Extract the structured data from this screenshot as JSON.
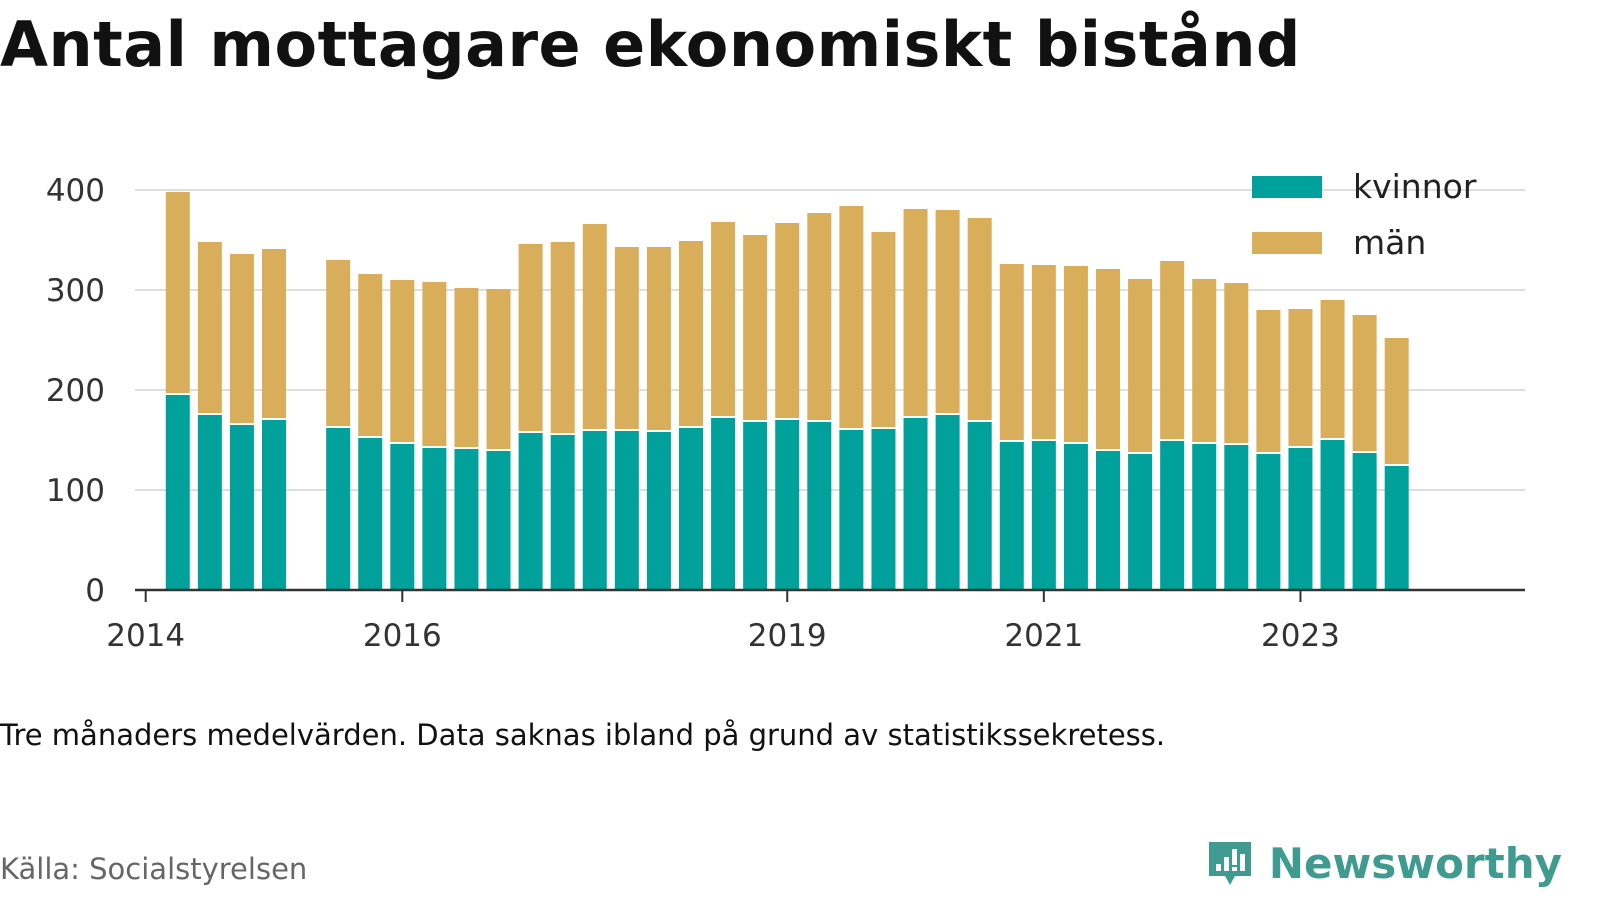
{
  "chart_data": {
    "type": "bar",
    "stacked": true,
    "title": "Antal mottagare ekonomiskt bistånd",
    "note": "Tre månaders medelvärden. Data saknas ibland på grund av statistikssekretess.",
    "source": "Källa: Socialstyrelsen",
    "xlabel": "",
    "ylabel": "",
    "ylim": [
      0,
      400
    ],
    "yticks": [
      0,
      100,
      200,
      300,
      400
    ],
    "xlim": [
      "2013-12",
      "2024-10"
    ],
    "xticks": [
      {
        "label": "2014",
        "value": "2014-01"
      },
      {
        "label": "2016",
        "value": "2016-01"
      },
      {
        "label": "2019",
        "value": "2019-01"
      },
      {
        "label": "2021",
        "value": "2021-01"
      },
      {
        "label": "2023",
        "value": "2023-01"
      }
    ],
    "grid": true,
    "legend": "top-right",
    "periods": [
      "2014-04",
      "2014-07",
      "2014-10",
      "2015-01",
      "2015-07",
      "2015-10",
      "2016-01",
      "2016-04",
      "2016-07",
      "2016-10",
      "2017-01",
      "2017-04",
      "2017-07",
      "2017-10",
      "2018-01",
      "2018-04",
      "2018-07",
      "2018-10",
      "2019-01",
      "2019-04",
      "2019-07",
      "2019-10",
      "2020-01",
      "2020-04",
      "2020-07",
      "2020-10",
      "2021-01",
      "2021-04",
      "2021-07",
      "2021-10",
      "2022-01",
      "2022-04",
      "2022-07",
      "2022-10",
      "2023-01",
      "2023-04",
      "2023-07",
      "2023-10"
    ],
    "series": [
      {
        "name": "kvinnor",
        "color": "#00a19a",
        "values": [
          195,
          175,
          165,
          170,
          162,
          152,
          146,
          142,
          141,
          139,
          157,
          155,
          159,
          159,
          158,
          162,
          172,
          168,
          170,
          168,
          160,
          161,
          172,
          175,
          168,
          148,
          149,
          146,
          139,
          136,
          149,
          146,
          145,
          136,
          142,
          150,
          137,
          124
        ]
      },
      {
        "name": "män",
        "color": "#d9ae5a",
        "values": [
          203,
          173,
          171,
          171,
          168,
          164,
          164,
          166,
          161,
          162,
          189,
          193,
          207,
          184,
          185,
          187,
          196,
          187,
          197,
          209,
          224,
          197,
          209,
          205,
          204,
          178,
          176,
          178,
          182,
          175,
          180,
          165,
          162,
          144,
          139,
          140,
          138,
          128
        ]
      }
    ]
  },
  "brand": {
    "name": "Newsworthy",
    "icon": "newsworthy-logo-icon",
    "color": "#3f9b90"
  }
}
